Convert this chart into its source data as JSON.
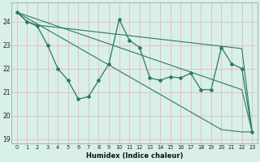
{
  "xlabel": "Humidex (Indice chaleur)",
  "bg_color": "#d8f0e8",
  "grid_color": "#e8b0b0",
  "line_color": "#2a7a6a",
  "x": [
    0,
    1,
    2,
    3,
    4,
    5,
    6,
    7,
    8,
    9,
    10,
    11,
    12,
    13,
    14,
    15,
    16,
    17,
    18,
    19,
    20,
    21,
    22,
    23
  ],
  "series_main": [
    24.4,
    24.0,
    23.8,
    23.0,
    22.0,
    21.5,
    20.7,
    20.8,
    21.5,
    22.2,
    24.1,
    23.2,
    22.9,
    21.6,
    21.5,
    21.65,
    21.6,
    21.8,
    21.1,
    21.1,
    22.9,
    22.2,
    22.0,
    19.3
  ],
  "series_trend1": [
    24.4,
    24.15,
    23.9,
    23.65,
    23.4,
    23.15,
    22.9,
    22.65,
    22.4,
    22.15,
    21.9,
    21.65,
    21.4,
    21.15,
    20.9,
    20.65,
    20.4,
    20.15,
    19.9,
    19.65,
    19.4,
    19.35,
    19.3,
    19.3
  ],
  "series_trend2": [
    24.4,
    24.25,
    24.1,
    23.95,
    23.8,
    23.65,
    23.5,
    23.35,
    23.2,
    23.05,
    22.9,
    22.75,
    22.6,
    22.45,
    22.3,
    22.15,
    22.0,
    21.85,
    21.7,
    21.55,
    21.4,
    21.25,
    21.1,
    19.3
  ],
  "series_top": [
    24.4,
    24.0,
    23.85,
    23.8,
    23.75,
    23.7,
    23.65,
    23.6,
    23.55,
    23.5,
    23.45,
    23.4,
    23.35,
    23.3,
    23.25,
    23.2,
    23.15,
    23.1,
    23.05,
    23.0,
    22.95,
    22.9,
    22.85,
    19.3
  ],
  "ylim": [
    18.8,
    24.8
  ],
  "yticks": [
    19,
    20,
    21,
    22,
    23,
    24
  ]
}
